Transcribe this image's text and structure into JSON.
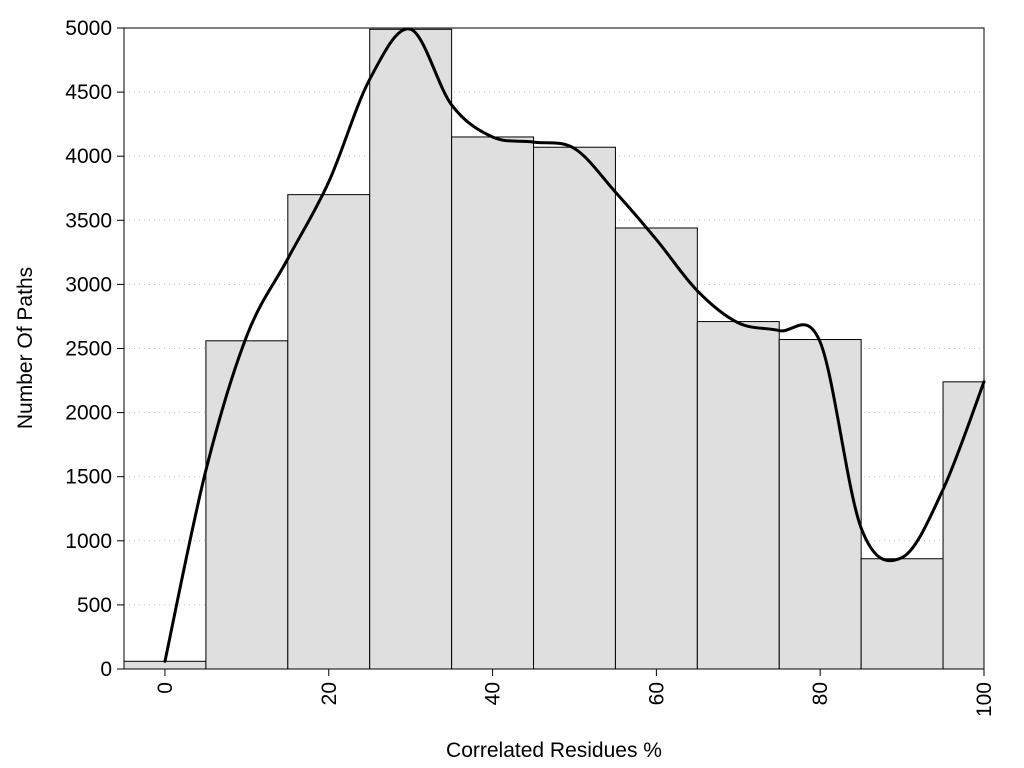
{
  "chart_data": {
    "type": "bar",
    "xlabel": "Correlated Residues %",
    "ylabel": "Number Of Paths",
    "bar_color": "#dfdfdf",
    "line_color": "#000000",
    "grid": "horizontal dotted",
    "xlim": [
      -5,
      100
    ],
    "ylim": [
      0,
      5000
    ],
    "x_ticks": [
      0,
      20,
      40,
      60,
      80,
      100
    ],
    "y_ticks": [
      0,
      500,
      1000,
      1500,
      2000,
      2500,
      3000,
      3500,
      4000,
      4500,
      5000
    ],
    "bins": [
      {
        "from": -5,
        "to": 5,
        "value": 60
      },
      {
        "from": 5,
        "to": 15,
        "value": 2560
      },
      {
        "from": 15,
        "to": 25,
        "value": 3700
      },
      {
        "from": 25,
        "to": 35,
        "value": 4990
      },
      {
        "from": 35,
        "to": 45,
        "value": 4150
      },
      {
        "from": 45,
        "to": 55,
        "value": 4070
      },
      {
        "from": 55,
        "to": 65,
        "value": 3440
      },
      {
        "from": 65,
        "to": 75,
        "value": 2710
      },
      {
        "from": 75,
        "to": 85,
        "value": 2570
      },
      {
        "from": 85,
        "to": 95,
        "value": 860
      },
      {
        "from": 95,
        "to": 100,
        "value": 2240
      }
    ],
    "smooth_curve": {
      "x": [
        0,
        5,
        10,
        15,
        20,
        25,
        30,
        35,
        40,
        45,
        50,
        55,
        60,
        65,
        70,
        75,
        80,
        85,
        90,
        95,
        100
      ],
      "y": [
        60,
        1550,
        2600,
        3200,
        3800,
        4600,
        4990,
        4400,
        4150,
        4110,
        4060,
        3720,
        3350,
        2950,
        2700,
        2640,
        2550,
        1100,
        870,
        1400,
        2240
      ]
    }
  }
}
